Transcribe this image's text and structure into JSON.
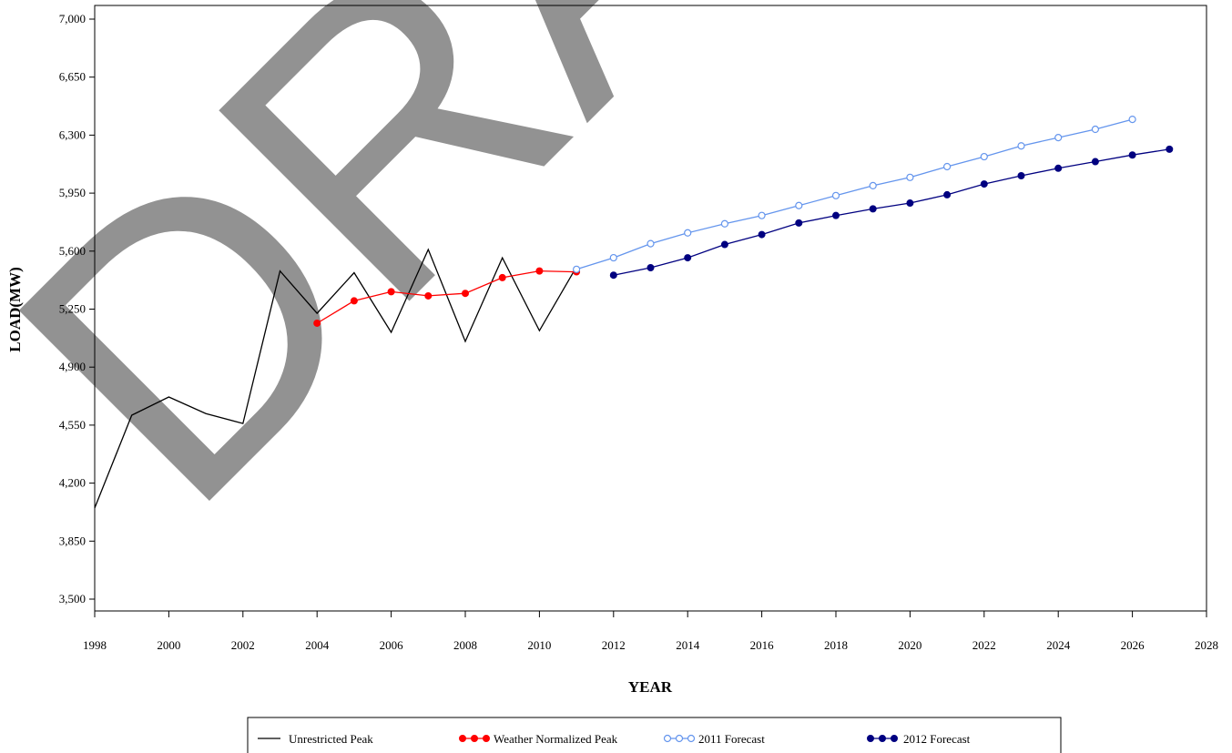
{
  "chart_data": {
    "type": "line",
    "title": "",
    "xlabel": "YEAR",
    "ylabel": "LOAD(MW)",
    "xlim": [
      1998,
      2028
    ],
    "ylim": [
      3500,
      7000
    ],
    "x_ticks": [
      "1998",
      "2000",
      "2002",
      "2004",
      "2006",
      "2008",
      "2010",
      "2012",
      "2014",
      "2016",
      "2018",
      "2020",
      "2022",
      "2024",
      "2026",
      "2028"
    ],
    "y_ticks": [
      "3,500",
      "3,850",
      "4,200",
      "4,550",
      "4,900",
      "5,250",
      "5,600",
      "5,950",
      "6,300",
      "6,650",
      "7,000"
    ],
    "watermark": "DRAFT",
    "legend_position": "bottom",
    "series": [
      {
        "name": "Unrestricted Peak",
        "color": "#000000",
        "marker": "none",
        "x": [
          1998,
          1999,
          2000,
          2001,
          2002,
          2003,
          2004,
          2005,
          2006,
          2007,
          2008,
          2009,
          2010,
          2011
        ],
        "y": [
          4050,
          4610,
          4720,
          4620,
          4560,
          5480,
          5225,
          5470,
          5110,
          5610,
          5055,
          5560,
          5120,
          5505
        ]
      },
      {
        "name": "Weather Normalized Peak",
        "color": "#ff0000",
        "marker": "filled-circle",
        "x": [
          2004,
          2005,
          2006,
          2007,
          2008,
          2009,
          2010,
          2011
        ],
        "y": [
          5165,
          5300,
          5355,
          5330,
          5345,
          5440,
          5480,
          5475
        ]
      },
      {
        "name": "2011 Forecast",
        "color": "#6495ed",
        "marker": "open-circle",
        "x": [
          2011,
          2012,
          2013,
          2014,
          2015,
          2016,
          2017,
          2018,
          2019,
          2020,
          2021,
          2022,
          2023,
          2024,
          2025,
          2026
        ],
        "y": [
          5490,
          5560,
          5645,
          5710,
          5765,
          5815,
          5875,
          5935,
          5995,
          6045,
          6110,
          6170,
          6235,
          6285,
          6335,
          6395
        ]
      },
      {
        "name": "2012 Forecast",
        "color": "#000080",
        "marker": "filled-circle",
        "x": [
          2012,
          2013,
          2014,
          2015,
          2016,
          2017,
          2018,
          2019,
          2020,
          2021,
          2022,
          2023,
          2024,
          2025,
          2026,
          2027
        ],
        "y": [
          5455,
          5500,
          5560,
          5640,
          5700,
          5770,
          5815,
          5855,
          5890,
          5940,
          6005,
          6055,
          6100,
          6140,
          6180,
          6215
        ]
      }
    ]
  }
}
